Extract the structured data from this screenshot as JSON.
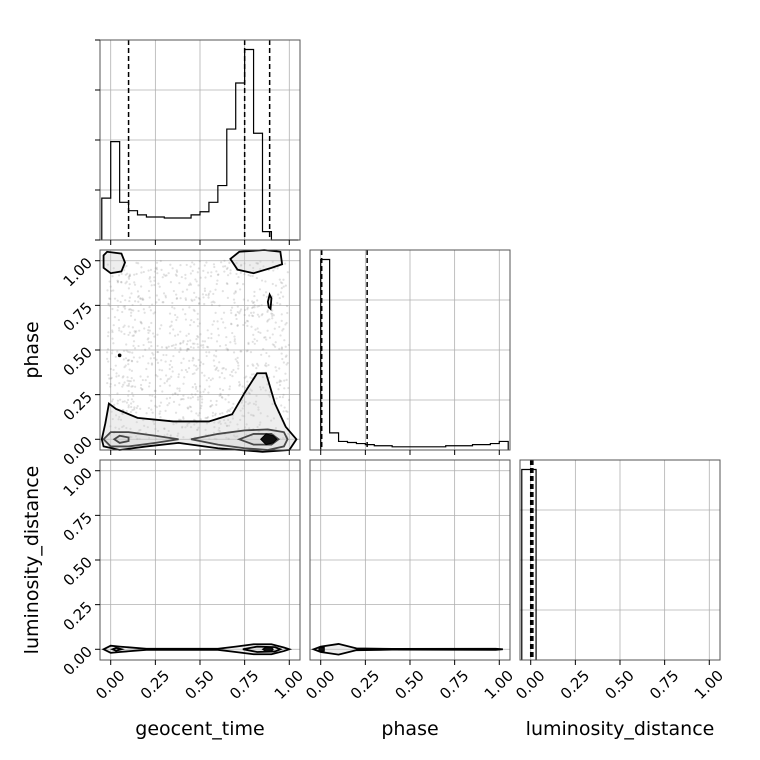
{
  "chart_data": {
    "type": "corner",
    "parameters": [
      "geocent_time",
      "phase",
      "luminosity_distance"
    ],
    "axis_labels": {
      "geocent_time": "geocent_time",
      "phase": "phase",
      "luminosity_distance": "luminosity_distance"
    },
    "ticks": [
      0.0,
      0.25,
      0.5,
      0.75,
      1.0
    ],
    "tick_labels": [
      "0.00",
      "0.25",
      "0.50",
      "0.75",
      "1.00"
    ],
    "ranges": {
      "geocent_time": [
        -0.06,
        1.06
      ],
      "phase": [
        -0.06,
        1.06
      ],
      "luminosity_distance": [
        -0.06,
        1.06
      ]
    },
    "grid": true,
    "histograms": {
      "geocent_time": {
        "bin_edges": [
          -0.05,
          0.0,
          0.05,
          0.1,
          0.15,
          0.2,
          0.25,
          0.3,
          0.35,
          0.4,
          0.45,
          0.5,
          0.55,
          0.6,
          0.65,
          0.7,
          0.75,
          0.8,
          0.85,
          0.9,
          0.95,
          1.0,
          1.05
        ],
        "counts": [
          0.2,
          0.47,
          0.18,
          0.14,
          0.12,
          0.11,
          0.11,
          0.105,
          0.105,
          0.105,
          0.12,
          0.135,
          0.18,
          0.26,
          0.53,
          0.75,
          0.91,
          0.51,
          0.04,
          0.0,
          0.0,
          0.0
        ],
        "quantiles": [
          0.1,
          0.75,
          0.89
        ]
      },
      "phase": {
        "bin_edges": [
          0.0,
          0.05,
          0.1,
          0.15,
          0.2,
          0.25,
          0.3,
          0.35,
          0.4,
          0.45,
          0.5,
          0.55,
          0.6,
          0.65,
          0.7,
          0.75,
          0.8,
          0.85,
          0.9,
          0.95,
          1.0,
          1.05
        ],
        "counts": [
          0.89,
          0.08,
          0.04,
          0.035,
          0.03,
          0.025,
          0.02,
          0.02,
          0.015,
          0.015,
          0.015,
          0.015,
          0.015,
          0.015,
          0.02,
          0.02,
          0.02,
          0.025,
          0.025,
          0.03,
          0.04
        ],
        "quantiles": [
          0.005,
          0.005,
          0.26
        ]
      },
      "luminosity_distance": {
        "bin_edges": [
          -0.05,
          0.0,
          0.03
        ],
        "counts": [
          0.98,
          0.98
        ],
        "quantiles": [
          0.0,
          0.005,
          0.012
        ]
      }
    },
    "contours": {
      "geocent_time__phase": {
        "levels": [
          [
            [
              -0.04,
              0.0
            ],
            [
              0.0,
              0.04
            ],
            [
              0.1,
              0.04
            ],
            [
              0.25,
              0.02
            ],
            [
              0.38,
              0.0
            ],
            [
              0.25,
              -0.02
            ],
            [
              0.1,
              -0.04
            ],
            [
              0.0,
              -0.04
            ]
          ],
          [
            [
              0.02,
              0.0
            ],
            [
              0.05,
              0.02
            ],
            [
              0.1,
              0.01
            ],
            [
              0.1,
              -0.01
            ],
            [
              0.05,
              -0.02
            ]
          ],
          [
            [
              0.45,
              0.0
            ],
            [
              0.6,
              0.03
            ],
            [
              0.75,
              0.05
            ],
            [
              0.88,
              0.055
            ],
            [
              0.97,
              0.04
            ],
            [
              0.99,
              0.0
            ],
            [
              0.97,
              -0.04
            ],
            [
              0.88,
              -0.06
            ],
            [
              0.75,
              -0.05
            ],
            [
              0.6,
              -0.03
            ]
          ],
          [
            [
              0.72,
              0.0
            ],
            [
              0.8,
              0.03
            ],
            [
              0.9,
              0.03
            ],
            [
              0.94,
              0.0
            ],
            [
              0.9,
              -0.03
            ],
            [
              0.8,
              -0.03
            ]
          ],
          [
            [
              0.86,
              0.0
            ],
            [
              0.87,
              0.02
            ],
            [
              0.91,
              0.02
            ],
            [
              0.92,
              0.0
            ],
            [
              0.91,
              -0.02
            ],
            [
              0.87,
              -0.02
            ]
          ],
          [
            [
              -0.05,
              0.0
            ],
            [
              -0.03,
              0.09
            ],
            [
              -0.01,
              0.2
            ],
            [
              0.03,
              0.17
            ],
            [
              0.15,
              0.12
            ],
            [
              0.35,
              0.1
            ],
            [
              0.55,
              0.1
            ],
            [
              0.68,
              0.14
            ],
            [
              0.75,
              0.26
            ],
            [
              0.82,
              0.37
            ],
            [
              0.87,
              0.37
            ],
            [
              0.92,
              0.2
            ],
            [
              0.98,
              0.07
            ],
            [
              1.04,
              0.0
            ],
            [
              1.0,
              -0.06
            ],
            [
              0.85,
              -0.07
            ],
            [
              0.6,
              -0.05
            ],
            [
              0.38,
              -0.02
            ],
            [
              0.2,
              -0.04
            ],
            [
              0.05,
              -0.06
            ],
            [
              -0.04,
              -0.04
            ]
          ],
          [
            [
              -0.04,
              1.03
            ],
            [
              -0.02,
              1.05
            ],
            [
              0.06,
              1.04
            ],
            [
              0.08,
              0.99
            ],
            [
              0.06,
              0.94
            ],
            [
              0.0,
              0.93
            ],
            [
              -0.04,
              0.96
            ]
          ],
          [
            [
              0.67,
              1.01
            ],
            [
              0.72,
              1.05
            ],
            [
              0.86,
              1.06
            ],
            [
              0.95,
              1.05
            ],
            [
              0.96,
              0.98
            ],
            [
              0.9,
              0.96
            ],
            [
              0.8,
              0.93
            ],
            [
              0.71,
              0.95
            ]
          ],
          [
            [
              0.88,
              0.77
            ],
            [
              0.89,
              0.81
            ],
            [
              0.9,
              0.79
            ],
            [
              0.895,
              0.73
            ],
            [
              0.885,
              0.74
            ]
          ]
        ],
        "filled_core": [
          [
            0.84,
            0.0
          ],
          [
            0.87,
            0.03
          ],
          [
            0.91,
            0.02
          ],
          [
            0.93,
            0.0
          ],
          [
            0.91,
            -0.02
          ],
          [
            0.87,
            -0.03
          ]
        ]
      },
      "geocent_time__luminosity_distance": {
        "levels": [
          [
            [
              -0.04,
              0.0
            ],
            [
              0.0,
              0.02
            ],
            [
              0.05,
              0.015
            ],
            [
              0.2,
              0.003
            ],
            [
              0.6,
              0.003
            ],
            [
              0.7,
              0.015
            ],
            [
              0.8,
              0.028
            ],
            [
              0.9,
              0.028
            ],
            [
              0.97,
              0.01
            ],
            [
              1.0,
              0.0
            ],
            [
              0.97,
              -0.01
            ],
            [
              0.9,
              -0.028
            ],
            [
              0.8,
              -0.028
            ],
            [
              0.7,
              -0.015
            ],
            [
              0.6,
              -0.003
            ],
            [
              0.2,
              -0.003
            ],
            [
              0.05,
              -0.015
            ],
            [
              0.0,
              -0.02
            ]
          ],
          [
            [
              0.01,
              0.0
            ],
            [
              0.03,
              0.008
            ],
            [
              0.06,
              0.0
            ],
            [
              0.03,
              -0.008
            ]
          ],
          [
            [
              0.74,
              0.0
            ],
            [
              0.82,
              0.015
            ],
            [
              0.92,
              0.012
            ],
            [
              0.95,
              0.0
            ],
            [
              0.92,
              -0.012
            ],
            [
              0.82,
              -0.015
            ]
          ]
        ],
        "filled_core": [
          [
            0.85,
            0.0
          ],
          [
            0.87,
            0.012
          ],
          [
            0.9,
            0.01
          ],
          [
            0.91,
            0.0
          ],
          [
            0.9,
            -0.01
          ],
          [
            0.87,
            -0.012
          ]
        ]
      },
      "phase__luminosity_distance": {
        "levels": [
          [
            [
              -0.04,
              0.0
            ],
            [
              0.0,
              0.015
            ],
            [
              0.1,
              0.03
            ],
            [
              0.2,
              0.005
            ],
            [
              0.4,
              0.002
            ],
            [
              0.98,
              0.003
            ],
            [
              1.02,
              0.0
            ],
            [
              0.98,
              -0.003
            ],
            [
              0.4,
              -0.002
            ],
            [
              0.2,
              -0.005
            ],
            [
              0.1,
              -0.03
            ],
            [
              0.0,
              -0.015
            ]
          ]
        ],
        "filled_core": [
          [
            -0.01,
            -0.01
          ],
          [
            0.02,
            -0.01
          ],
          [
            0.02,
            0.01
          ],
          [
            -0.01,
            0.01
          ]
        ]
      }
    }
  }
}
